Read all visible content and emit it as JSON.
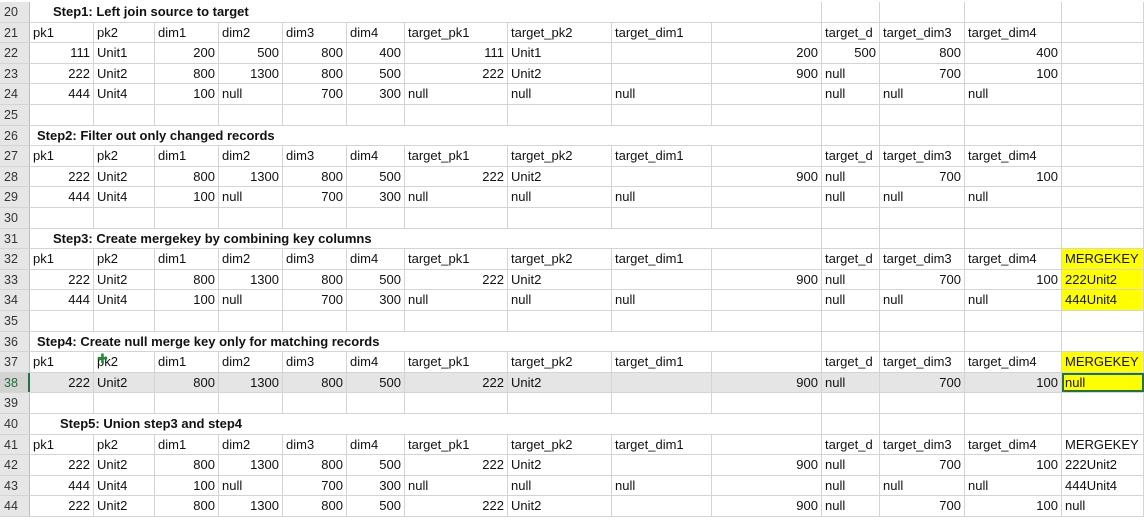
{
  "rows": [
    {
      "num": "20",
      "title": "Step1: Left join source to target",
      "title_indent": true
    },
    {
      "num": "21",
      "cells": [
        "pk1",
        "pk2",
        "dim1",
        "dim2",
        "dim3",
        "dim4",
        "target_pk1",
        "target_pk2",
        "target_dim1",
        "",
        "target_d",
        "target_dim3",
        "target_dim4",
        ""
      ]
    },
    {
      "num": "22",
      "cells": [
        "111",
        "Unit1",
        "200",
        "500",
        "800",
        "400",
        "111",
        "Unit1",
        "",
        "200",
        "500",
        "800",
        "400",
        ""
      ]
    },
    {
      "num": "23",
      "cells": [
        "222",
        "Unit2",
        "800",
        "1300",
        "800",
        "500",
        "222",
        "Unit2",
        "",
        "900",
        "null",
        "700",
        "100",
        ""
      ]
    },
    {
      "num": "24",
      "cells": [
        "444",
        "Unit4",
        "100",
        "null",
        "700",
        "300",
        "null",
        "null",
        "null",
        "",
        "null",
        "null",
        "null",
        ""
      ]
    },
    {
      "num": "25"
    },
    {
      "num": "26",
      "title": "Step2: Filter out only changed records",
      "title_indent": false
    },
    {
      "num": "27",
      "cells": [
        "pk1",
        "pk2",
        "dim1",
        "dim2",
        "dim3",
        "dim4",
        "target_pk1",
        "target_pk2",
        "target_dim1",
        "",
        "target_d",
        "target_dim3",
        "target_dim4",
        ""
      ]
    },
    {
      "num": "28",
      "cells": [
        "222",
        "Unit2",
        "800",
        "1300",
        "800",
        "500",
        "222",
        "Unit2",
        "",
        "900",
        "null",
        "700",
        "100",
        ""
      ]
    },
    {
      "num": "29",
      "cells": [
        "444",
        "Unit4",
        "100",
        "null",
        "700",
        "300",
        "null",
        "null",
        "null",
        "",
        "null",
        "null",
        "null",
        ""
      ]
    },
    {
      "num": "30"
    },
    {
      "num": "31",
      "title": "Step3: Create mergekey by combining key columns",
      "title_indent": true
    },
    {
      "num": "32",
      "cells": [
        "pk1",
        "pk2",
        "dim1",
        "dim2",
        "dim3",
        "dim4",
        "target_pk1",
        "target_pk2",
        "target_dim1",
        "",
        "target_d",
        "target_dim3",
        "target_dim4",
        "MERGEKEY"
      ],
      "yellow_last": true
    },
    {
      "num": "33",
      "cells": [
        "222",
        "Unit2",
        "800",
        "1300",
        "800",
        "500",
        "222",
        "Unit2",
        "",
        "900",
        "null",
        "700",
        "100",
        "222Unit2"
      ],
      "yellow_last": true
    },
    {
      "num": "34",
      "cells": [
        "444",
        "Unit4",
        "100",
        "null",
        "700",
        "300",
        "null",
        "null",
        "null",
        "",
        "null",
        "null",
        "null",
        "444Unit4"
      ],
      "yellow_last": true
    },
    {
      "num": "35"
    },
    {
      "num": "36",
      "title": "Step4: Create null merge key only for matching records",
      "title_indent": false
    },
    {
      "num": "37",
      "cells": [
        "pk1",
        "pk2",
        "dim1",
        "dim2",
        "dim3",
        "dim4",
        "target_pk1",
        "target_pk2",
        "target_dim1",
        "",
        "target_d",
        "target_dim3",
        "target_dim4",
        "MERGEKEY"
      ],
      "yellow_last": true
    },
    {
      "num": "38",
      "cells": [
        "222",
        "Unit2",
        "800",
        "1300",
        "800",
        "500",
        "222",
        "Unit2",
        "",
        "900",
        "null",
        "700",
        "100",
        "null"
      ],
      "yellow_last": true,
      "selected": true,
      "active_last": true
    },
    {
      "num": "39"
    },
    {
      "num": "40",
      "title": "Step5: Union step3 and step4",
      "title_indent": true,
      "title_extra": true
    },
    {
      "num": "41",
      "cells": [
        "pk1",
        "pk2",
        "dim1",
        "dim2",
        "dim3",
        "dim4",
        "target_pk1",
        "target_pk2",
        "target_dim1",
        "",
        "target_d",
        "target_dim3",
        "target_dim4",
        "MERGEKEY"
      ]
    },
    {
      "num": "42",
      "cells": [
        "222",
        "Unit2",
        "800",
        "1300",
        "800",
        "500",
        "222",
        "Unit2",
        "",
        "900",
        "null",
        "700",
        "100",
        "222Unit2"
      ]
    },
    {
      "num": "43",
      "cells": [
        "444",
        "Unit4",
        "100",
        "null",
        "700",
        "300",
        "null",
        "null",
        "null",
        "",
        "null",
        "null",
        "null",
        "444Unit4"
      ]
    },
    {
      "num": "44",
      "cells": [
        "222",
        "Unit2",
        "800",
        "1300",
        "800",
        "500",
        "222",
        "Unit2",
        "",
        "900",
        "null",
        "700",
        "100",
        "null"
      ]
    }
  ],
  "cursor_icon": "cell-select-cursor"
}
